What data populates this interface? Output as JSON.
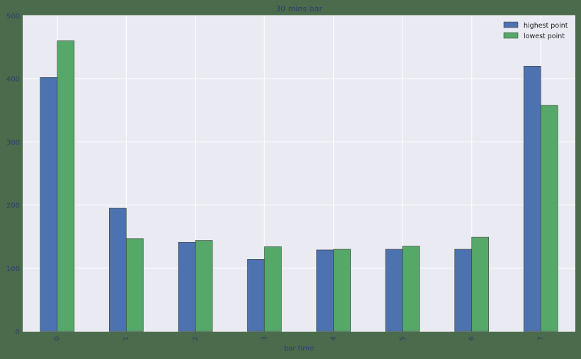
{
  "chart_data": {
    "type": "bar",
    "title": "30 mins bar",
    "xlabel": "bar time",
    "ylabel": "",
    "categories": [
      "0",
      "1",
      "2",
      "3",
      "4",
      "5",
      "6",
      "7"
    ],
    "series": [
      {
        "name": "highest point",
        "values": [
          402,
          195,
          141,
          114,
          129,
          130,
          130,
          420
        ],
        "color": "#4c72b0"
      },
      {
        "name": "lowest point",
        "values": [
          460,
          147,
          144,
          134,
          130,
          135,
          149,
          358
        ],
        "color": "#55a868"
      }
    ],
    "yticks": [
      0,
      100,
      200,
      300,
      400,
      500
    ],
    "ylim": [
      0,
      500
    ],
    "grid": true,
    "legend_position": "top-right",
    "plot_background": "#eaeaf2",
    "figure_background": "#4a6b4c"
  }
}
